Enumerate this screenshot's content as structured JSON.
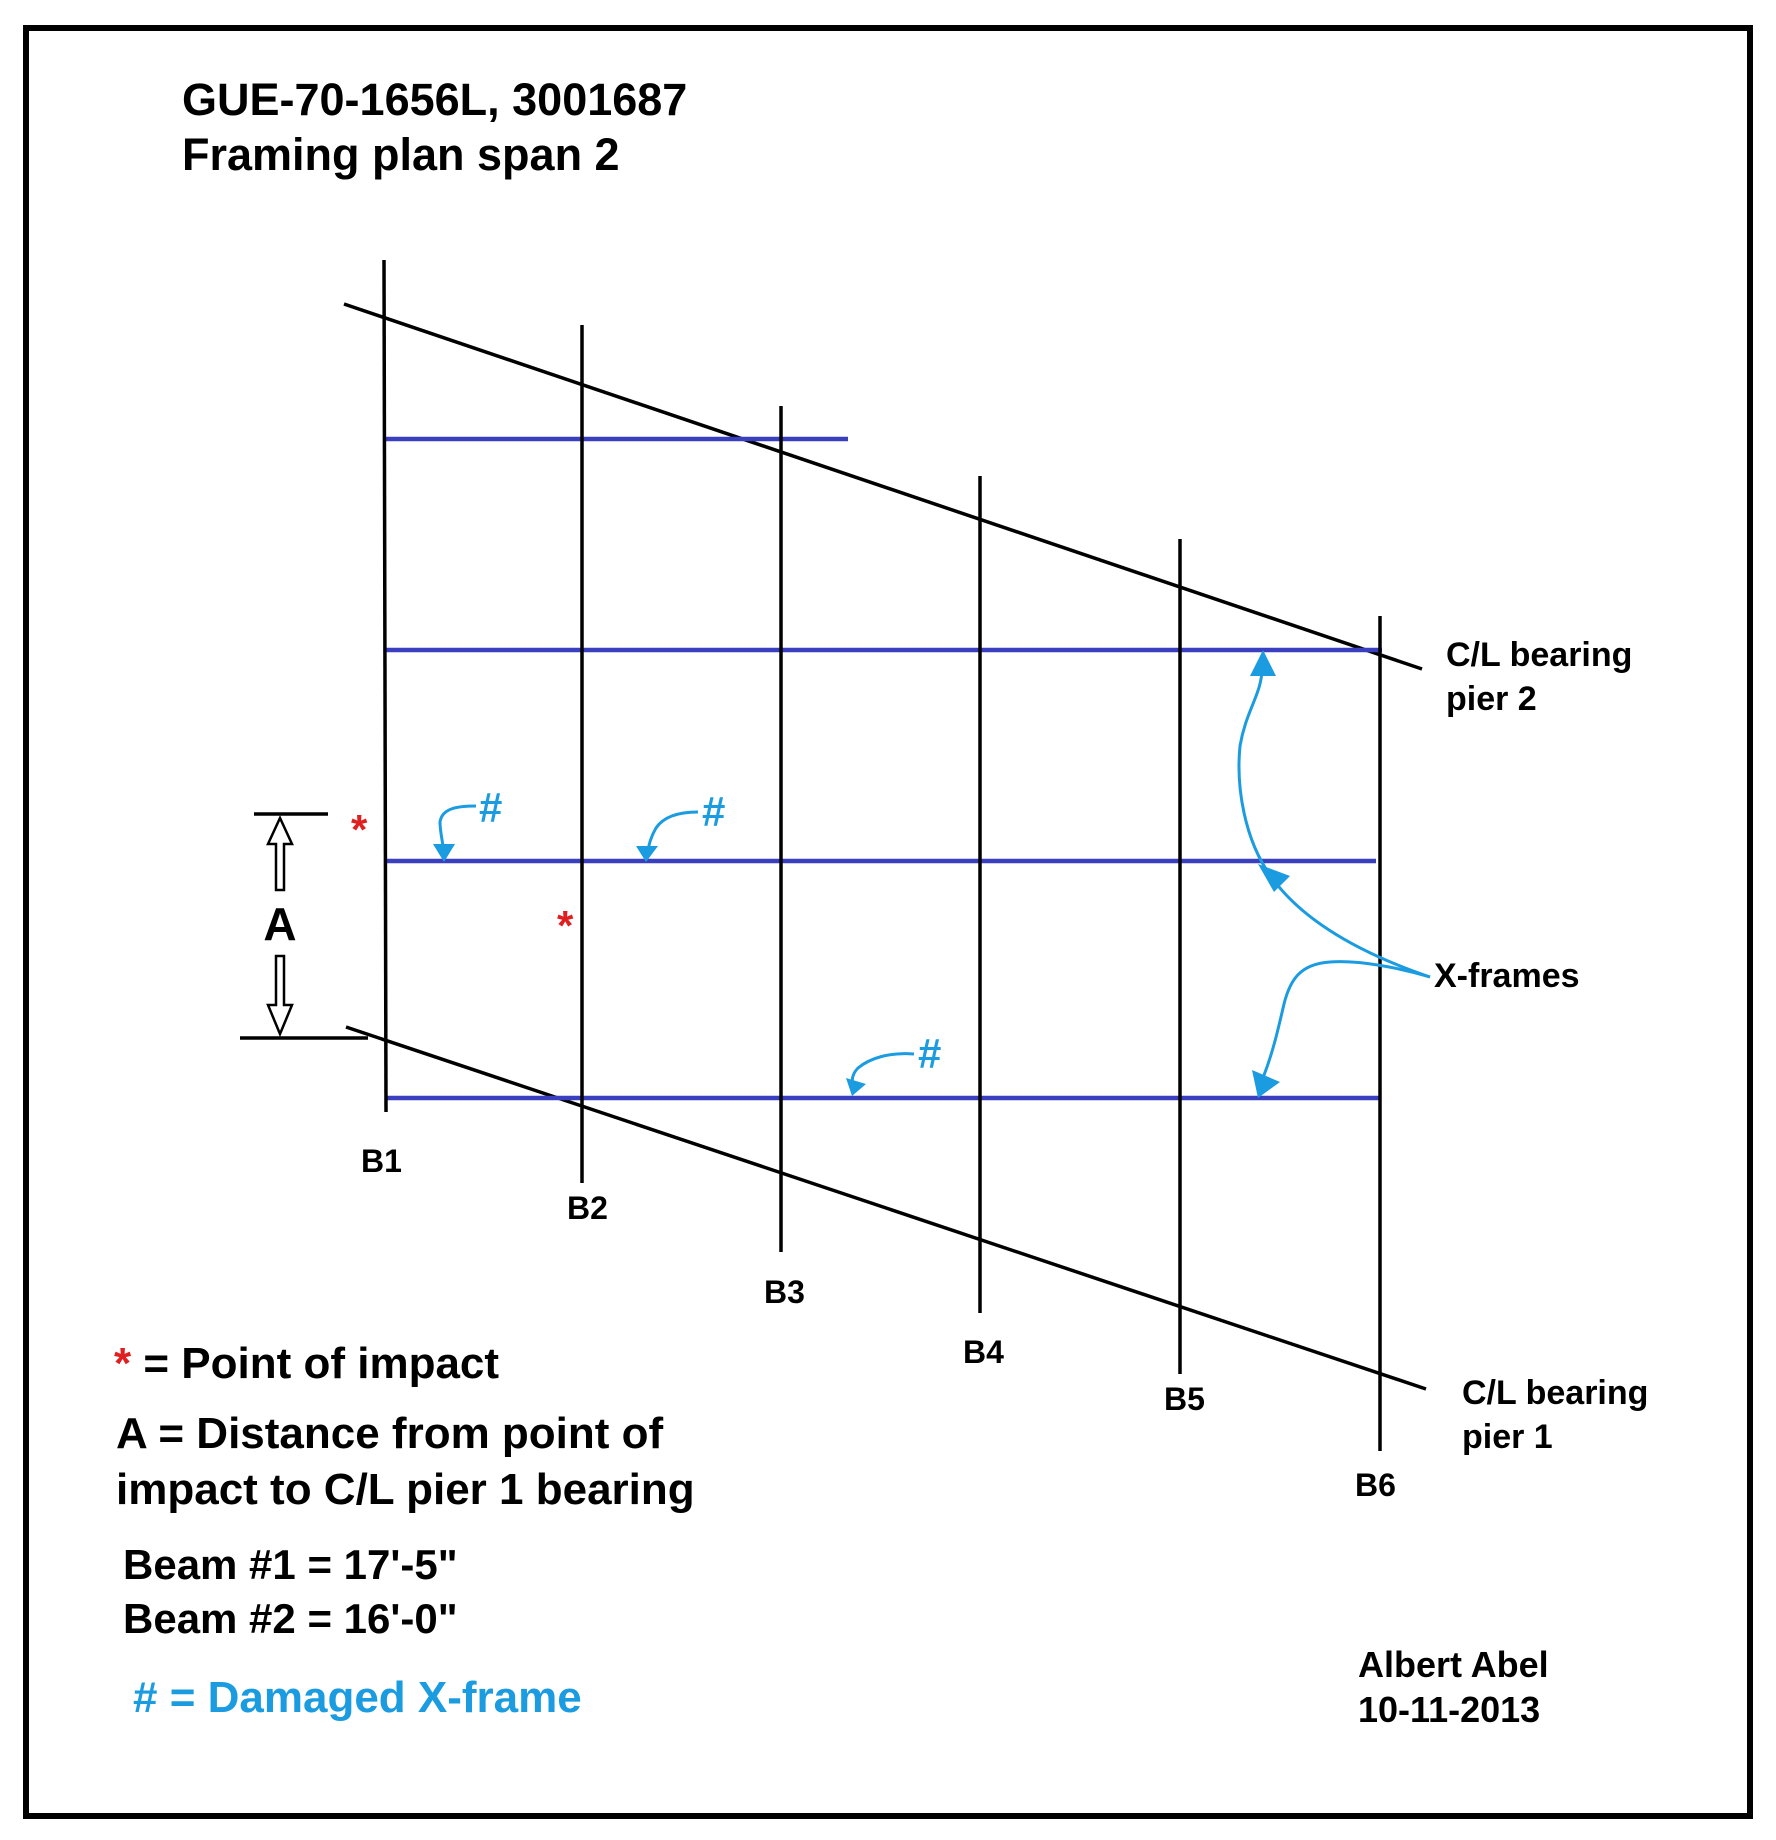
{
  "title": {
    "line1": "GUE-70-1656L, 3001687",
    "line2": "Framing plan  span 2"
  },
  "beams": [
    {
      "id": "b1",
      "label": "B1"
    },
    {
      "id": "b2",
      "label": "B2"
    },
    {
      "id": "b3",
      "label": "B3"
    },
    {
      "id": "b4",
      "label": "B4"
    },
    {
      "id": "b5",
      "label": "B5"
    },
    {
      "id": "b6",
      "label": "B6"
    }
  ],
  "bearing_pier2": {
    "line1": "C/L bearing",
    "line2": "pier 2"
  },
  "bearing_pier1": {
    "line1": "C/L bearing",
    "line2": "pier 1"
  },
  "x_frames_label": "X-frames",
  "dimension_label": "A",
  "damage_mark": "#",
  "impact_mark": "*",
  "legend": {
    "impact_symbol": "*",
    "impact_text": " = Point of impact",
    "a_line1": "A = Distance from point of",
    "a_line2": "impact to C/L pier 1 bearing",
    "beam1": "Beam #1 = 17'-5\"",
    "beam2": "Beam #2 = 16'-0\"",
    "damaged": "# = Damaged X-frame"
  },
  "author": {
    "name": "Albert Abel",
    "date": "10-11-2013"
  },
  "colors": {
    "x_frame": "#3a3fbf",
    "damage": "#1b9be0",
    "impact": "#e02020",
    "ink": "#000000"
  }
}
